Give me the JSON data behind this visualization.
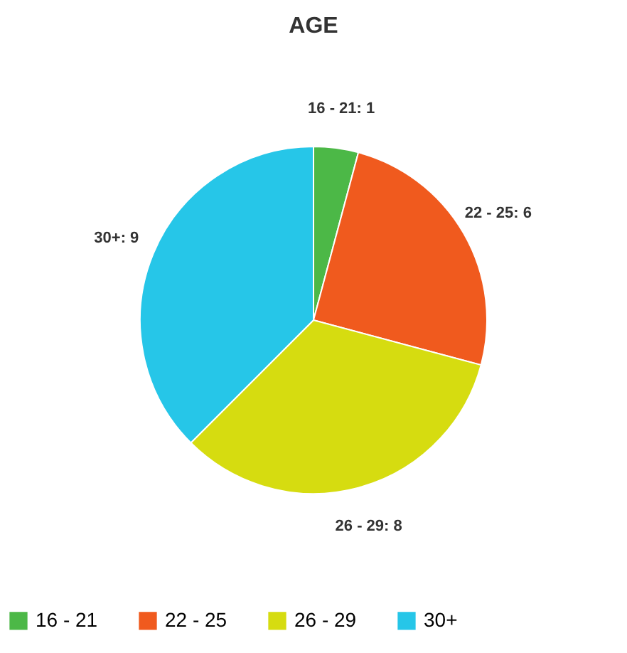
{
  "chart_data": {
    "type": "pie",
    "title": "AGE",
    "categories": [
      "16 - 21",
      "22 - 25",
      "26 - 29",
      "30+"
    ],
    "values": [
      1,
      6,
      8,
      9
    ],
    "colors": [
      "#4cb847",
      "#f05a1e",
      "#d6dc10",
      "#26c6e8"
    ],
    "value_labels": [
      "16 - 21: 1",
      "22 - 25: 6",
      "26 - 29: 8",
      "30+: 9"
    ],
    "legend": "bottom"
  }
}
